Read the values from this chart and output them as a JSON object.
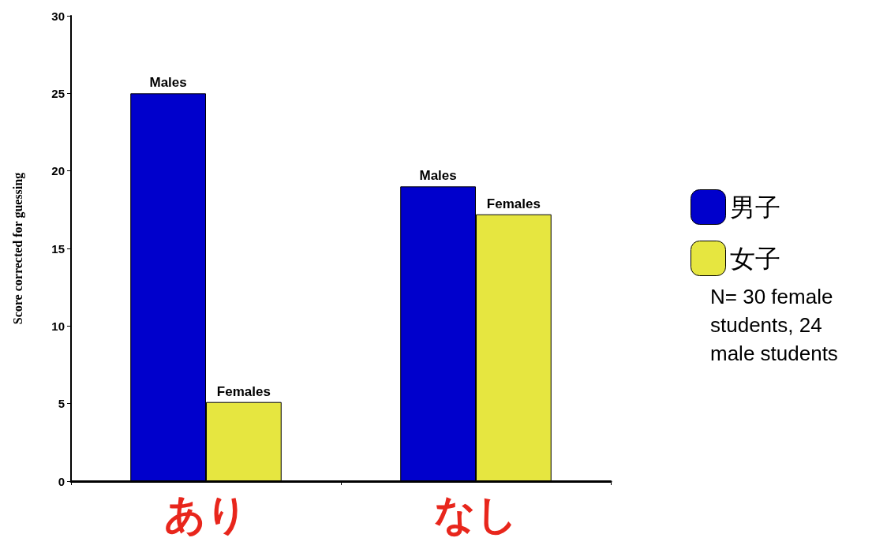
{
  "chart_data": {
    "type": "bar",
    "ylabel": "Score corrected for guessing",
    "categories": [
      "あり",
      "なし"
    ],
    "series": [
      {
        "name": "男子",
        "color": "#0000cc",
        "values": [
          25,
          19
        ]
      },
      {
        "name": "女子",
        "color": "#e6e640",
        "values": [
          5.1,
          17.2
        ]
      }
    ],
    "ylim": [
      0,
      30
    ],
    "yticks": [
      0,
      5,
      10,
      15,
      20,
      25,
      30
    ],
    "grid": false,
    "legend": "right",
    "annotations": [
      {
        "text": "Males",
        "x": "あり",
        "y": 25
      },
      {
        "text": "Females",
        "x": "あり",
        "y": 5.1
      },
      {
        "text": "Males",
        "x": "なし",
        "y": 19
      },
      {
        "text": "Females",
        "x": "なし",
        "y": 17.2
      },
      "N= 30 female students, 24 male students"
    ]
  }
}
